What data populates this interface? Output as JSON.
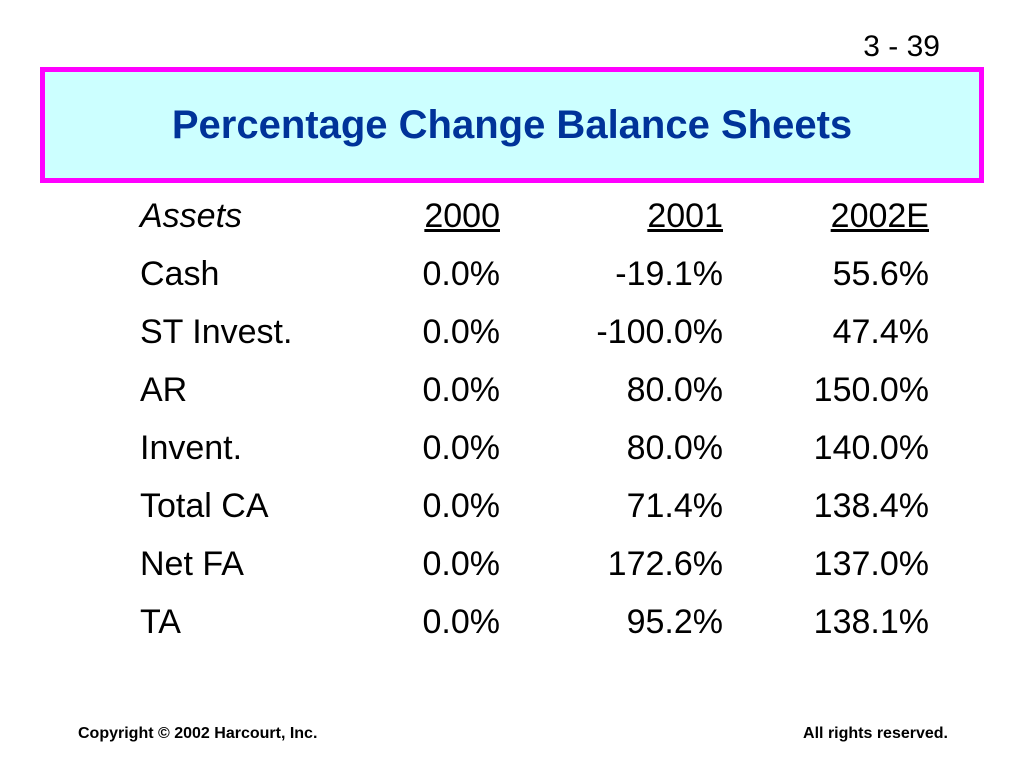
{
  "slide": {
    "number": "3 - 39",
    "title": "Percentage Change Balance Sheets"
  },
  "table": {
    "headers": [
      "Assets",
      "2000",
      "2001",
      "2002E"
    ],
    "rows": [
      [
        "Cash",
        "0.0%",
        "-19.1%",
        "55.6%"
      ],
      [
        "ST Invest.",
        "0.0%",
        "-100.0%",
        "47.4%"
      ],
      [
        "AR",
        "0.0%",
        "80.0%",
        "150.0%"
      ],
      [
        "Invent.",
        "0.0%",
        "80.0%",
        "140.0%"
      ],
      [
        "Total CA",
        "0.0%",
        "71.4%",
        "138.4%"
      ],
      [
        "Net FA",
        "0.0%",
        "172.6%",
        "137.0%"
      ],
      [
        "TA",
        "0.0%",
        "95.2%",
        "138.1%"
      ]
    ]
  },
  "footer": {
    "copyright": "Copyright © 2002 Harcourt, Inc.",
    "rights": "All rights reserved."
  },
  "colors": {
    "title_text": "#003399",
    "title_background": "#ccffff",
    "title_border": "#ff00ff"
  }
}
